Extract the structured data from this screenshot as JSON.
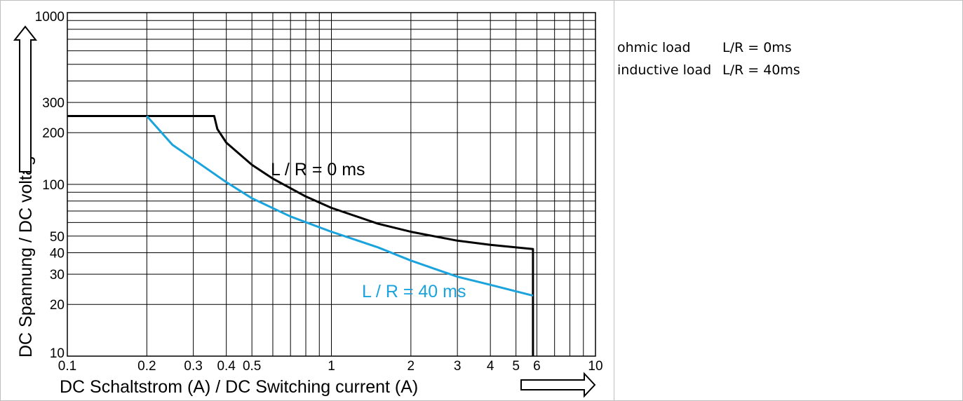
{
  "chart_data": {
    "type": "line",
    "x_scale": "log",
    "y_scale": "log",
    "xlim": [
      0.1,
      10
    ],
    "ylim": [
      10,
      1000
    ],
    "grid": true,
    "xlabel": "DC Schaltstrom (A) / DC Switching current (A)",
    "ylabel": "DC Spannung / DC voltage",
    "x_ticks": [
      {
        "value": 0.1,
        "label": "0.1"
      },
      {
        "value": 0.2,
        "label": "0.2"
      },
      {
        "value": 0.3,
        "label": "0.3"
      },
      {
        "value": 0.4,
        "label": "0.4"
      },
      {
        "value": 0.5,
        "label": "0.5"
      },
      {
        "value": 1,
        "label": "1"
      },
      {
        "value": 2,
        "label": "2"
      },
      {
        "value": 3,
        "label": "3"
      },
      {
        "value": 4,
        "label": "4"
      },
      {
        "value": 5,
        "label": "5"
      },
      {
        "value": 6,
        "label": "6"
      },
      {
        "value": 10,
        "label": "10"
      }
    ],
    "y_ticks": [
      {
        "value": 10,
        "label": "10"
      },
      {
        "value": 20,
        "label": "20"
      },
      {
        "value": 30,
        "label": "30"
      },
      {
        "value": 40,
        "label": "40"
      },
      {
        "value": 50,
        "label": "50"
      },
      {
        "value": 100,
        "label": "100"
      },
      {
        "value": 200,
        "label": "200"
      },
      {
        "value": 300,
        "label": "300"
      },
      {
        "value": 1000,
        "label": "1000"
      }
    ],
    "series": [
      {
        "name": "L / R = 0 ms",
        "color": "#000000",
        "points": [
          [
            0.1,
            250
          ],
          [
            0.36,
            250
          ],
          [
            0.37,
            210
          ],
          [
            0.4,
            175
          ],
          [
            0.5,
            130
          ],
          [
            0.6,
            108
          ],
          [
            0.8,
            85
          ],
          [
            1,
            73
          ],
          [
            1.5,
            59
          ],
          [
            2,
            53
          ],
          [
            3,
            47
          ],
          [
            4,
            44.5
          ],
          [
            5.8,
            42
          ],
          [
            5.8,
            10
          ]
        ]
      },
      {
        "name": "L / R = 40 ms",
        "color": "#1aa3dc",
        "points": [
          [
            0.2,
            250
          ],
          [
            0.25,
            170
          ],
          [
            0.3,
            140
          ],
          [
            0.4,
            103
          ],
          [
            0.5,
            83
          ],
          [
            0.7,
            65
          ],
          [
            1,
            53
          ],
          [
            1.5,
            43
          ],
          [
            2,
            36
          ],
          [
            3,
            29
          ],
          [
            4,
            26
          ],
          [
            5.8,
            22.5
          ]
        ]
      }
    ],
    "annotations": [
      {
        "text": "L / R = 0 ms",
        "color": "#000000"
      },
      {
        "text": "L / R = 40 ms",
        "color": "#1aa3dc"
      }
    ]
  },
  "legend_panel": {
    "rows": [
      {
        "name": "ohmic load",
        "value": "L/R = 0ms"
      },
      {
        "name": "inductive load",
        "value": "L/R  = 40ms"
      }
    ]
  }
}
